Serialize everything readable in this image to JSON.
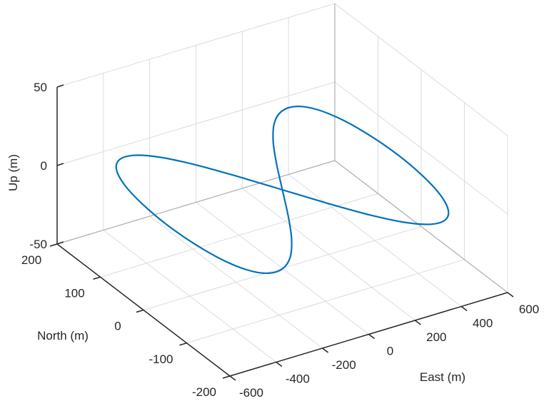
{
  "chart_data": {
    "type": "line",
    "projection": "3d",
    "title": "",
    "xlabel": "East (m)",
    "ylabel": "North (m)",
    "zlabel": "Up (m)",
    "xlim": [
      -600,
      600
    ],
    "ylim": [
      -200,
      200
    ],
    "zlim": [
      -50,
      50
    ],
    "xticks": [
      "-600",
      "-400",
      "-200",
      "0",
      "200",
      "400",
      "600"
    ],
    "yticks": [
      "-200",
      "-100",
      "0",
      "100",
      "200"
    ],
    "zticks": [
      "-50",
      "0",
      "50"
    ],
    "grid": true,
    "line_color": "#0072BD",
    "grid_color": "#dcdcdc",
    "axis_color": "#262626",
    "series": [
      {
        "x": [
          0,
          87,
          171,
          250,
          321,
          383,
          433,
          470,
          492,
          500,
          492,
          470,
          433,
          383,
          321,
          250,
          171,
          87,
          0,
          -87,
          -171,
          -250,
          -321,
          -383,
          -433,
          -470,
          -492,
          -500,
          -492,
          -470,
          -433,
          -383,
          -321,
          -250,
          -171,
          -87,
          0
        ],
        "y": [
          0,
          60,
          113,
          152,
          172,
          172,
          152,
          113,
          60,
          0,
          -60,
          -113,
          -152,
          -172,
          -172,
          -152,
          -113,
          -60,
          0,
          60,
          113,
          152,
          172,
          172,
          152,
          113,
          60,
          0,
          -60,
          -113,
          -152,
          -172,
          -172,
          -152,
          -113,
          -60,
          0
        ],
        "z": [
          0,
          0,
          0,
          0,
          0,
          0,
          0,
          0,
          0,
          0,
          0,
          0,
          0,
          0,
          0,
          0,
          0,
          0,
          0,
          0,
          0,
          0,
          0,
          0,
          0,
          0,
          0,
          0,
          0,
          0,
          0,
          0,
          0,
          0,
          0,
          0,
          0
        ]
      }
    ]
  }
}
